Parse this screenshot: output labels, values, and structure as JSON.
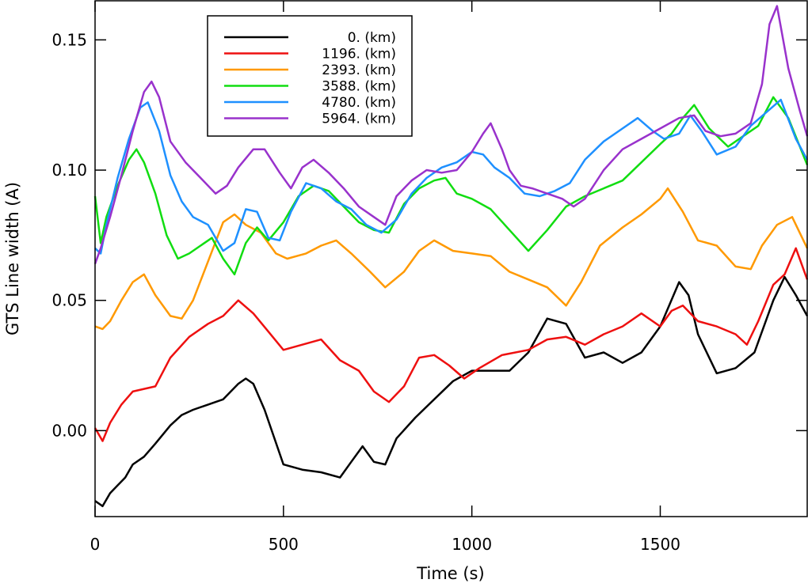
{
  "chart_data": {
    "type": "line",
    "xlabel": "Time (s)",
    "ylabel": "GTS Line width (A)",
    "xlim": [
      0,
      1890
    ],
    "ylim": [
      -0.033,
      0.165
    ],
    "xticks": [
      0,
      500,
      1000,
      1500
    ],
    "xtick_labels": [
      "0",
      "500",
      "1000",
      "1500"
    ],
    "yticks": [
      0.0,
      0.05,
      0.1,
      0.15
    ],
    "ytick_labels": [
      "0.00",
      "0.05",
      "0.10",
      "0.15"
    ],
    "legend_position": "top-left",
    "grid": false,
    "series": [
      {
        "name": "0. (km)",
        "color": "#000000",
        "x": [
          0,
          20,
          40,
          60,
          80,
          100,
          130,
          160,
          200,
          230,
          260,
          300,
          340,
          380,
          400,
          420,
          450,
          500,
          550,
          600,
          650,
          680,
          710,
          740,
          770,
          800,
          850,
          900,
          950,
          1000,
          1050,
          1100,
          1150,
          1200,
          1250,
          1300,
          1350,
          1400,
          1450,
          1500,
          1550,
          1575,
          1600,
          1650,
          1700,
          1750,
          1800,
          1830,
          1860,
          1890
        ],
        "y": [
          -0.027,
          -0.029,
          -0.024,
          -0.021,
          -0.018,
          -0.013,
          -0.01,
          -0.005,
          0.002,
          0.006,
          0.008,
          0.01,
          0.012,
          0.018,
          0.02,
          0.018,
          0.008,
          -0.013,
          -0.015,
          -0.016,
          -0.018,
          -0.012,
          -0.006,
          -0.012,
          -0.013,
          -0.003,
          0.005,
          0.012,
          0.019,
          0.023,
          0.023,
          0.023,
          0.03,
          0.043,
          0.041,
          0.028,
          0.03,
          0.026,
          0.03,
          0.04,
          0.057,
          0.052,
          0.037,
          0.022,
          0.024,
          0.03,
          0.05,
          0.059,
          0.052,
          0.044
        ]
      },
      {
        "name": "1196. (km)",
        "color": "#ee1010",
        "x": [
          0,
          20,
          40,
          70,
          100,
          130,
          160,
          200,
          250,
          300,
          340,
          380,
          420,
          460,
          500,
          550,
          600,
          650,
          700,
          740,
          780,
          820,
          860,
          900,
          940,
          980,
          1020,
          1080,
          1150,
          1200,
          1250,
          1300,
          1350,
          1400,
          1450,
          1500,
          1530,
          1560,
          1600,
          1650,
          1700,
          1730,
          1760,
          1800,
          1830,
          1860,
          1890
        ],
        "y": [
          0.001,
          -0.004,
          0.003,
          0.01,
          0.015,
          0.016,
          0.017,
          0.028,
          0.036,
          0.041,
          0.044,
          0.05,
          0.045,
          0.038,
          0.031,
          0.033,
          0.035,
          0.027,
          0.023,
          0.015,
          0.011,
          0.017,
          0.028,
          0.029,
          0.025,
          0.02,
          0.024,
          0.029,
          0.031,
          0.035,
          0.036,
          0.033,
          0.037,
          0.04,
          0.045,
          0.04,
          0.046,
          0.048,
          0.042,
          0.04,
          0.037,
          0.033,
          0.042,
          0.056,
          0.06,
          0.07,
          0.058
        ]
      },
      {
        "name": "2393. (km)",
        "color": "#ff9900",
        "x": [
          0,
          20,
          40,
          70,
          100,
          130,
          160,
          200,
          230,
          260,
          300,
          340,
          370,
          400,
          440,
          480,
          510,
          560,
          600,
          640,
          680,
          730,
          770,
          820,
          860,
          900,
          950,
          1000,
          1050,
          1100,
          1150,
          1200,
          1250,
          1290,
          1340,
          1400,
          1450,
          1500,
          1520,
          1560,
          1600,
          1650,
          1700,
          1740,
          1770,
          1810,
          1850,
          1890
        ],
        "y": [
          0.04,
          0.039,
          0.042,
          0.05,
          0.057,
          0.06,
          0.052,
          0.044,
          0.043,
          0.05,
          0.065,
          0.08,
          0.083,
          0.079,
          0.076,
          0.068,
          0.066,
          0.068,
          0.071,
          0.073,
          0.068,
          0.061,
          0.055,
          0.061,
          0.069,
          0.073,
          0.069,
          0.068,
          0.067,
          0.061,
          0.058,
          0.055,
          0.048,
          0.057,
          0.071,
          0.078,
          0.083,
          0.089,
          0.093,
          0.084,
          0.073,
          0.071,
          0.063,
          0.062,
          0.071,
          0.079,
          0.082,
          0.07
        ]
      },
      {
        "name": "3588. (km)",
        "color": "#11dd11",
        "x": [
          0,
          15,
          30,
          60,
          90,
          110,
          130,
          160,
          190,
          220,
          250,
          280,
          310,
          340,
          370,
          400,
          430,
          460,
          500,
          540,
          580,
          620,
          660,
          700,
          740,
          780,
          820,
          860,
          900,
          930,
          960,
          1000,
          1050,
          1100,
          1150,
          1200,
          1250,
          1300,
          1350,
          1400,
          1450,
          1500,
          1530,
          1560,
          1590,
          1630,
          1680,
          1720,
          1760,
          1800,
          1840,
          1890
        ],
        "y": [
          0.09,
          0.072,
          0.082,
          0.094,
          0.104,
          0.108,
          0.103,
          0.091,
          0.075,
          0.066,
          0.068,
          0.071,
          0.074,
          0.066,
          0.06,
          0.072,
          0.078,
          0.073,
          0.08,
          0.09,
          0.094,
          0.092,
          0.086,
          0.08,
          0.077,
          0.076,
          0.087,
          0.093,
          0.096,
          0.097,
          0.091,
          0.089,
          0.085,
          0.077,
          0.069,
          0.077,
          0.086,
          0.09,
          0.093,
          0.096,
          0.103,
          0.11,
          0.114,
          0.12,
          0.125,
          0.116,
          0.109,
          0.113,
          0.117,
          0.128,
          0.12,
          0.102
        ]
      },
      {
        "name": "4780. (km)",
        "color": "#1e90ff",
        "x": [
          0,
          15,
          30,
          60,
          90,
          120,
          140,
          170,
          200,
          230,
          260,
          300,
          340,
          370,
          400,
          430,
          460,
          490,
          520,
          560,
          600,
          640,
          680,
          720,
          760,
          800,
          840,
          880,
          920,
          960,
          1000,
          1030,
          1060,
          1100,
          1140,
          1180,
          1220,
          1260,
          1300,
          1350,
          1400,
          1440,
          1480,
          1510,
          1550,
          1580,
          1610,
          1650,
          1700,
          1740,
          1780,
          1820,
          1860,
          1890
        ],
        "y": [
          0.07,
          0.068,
          0.079,
          0.097,
          0.112,
          0.124,
          0.126,
          0.115,
          0.098,
          0.088,
          0.082,
          0.079,
          0.069,
          0.072,
          0.085,
          0.084,
          0.074,
          0.073,
          0.084,
          0.095,
          0.093,
          0.088,
          0.085,
          0.079,
          0.076,
          0.081,
          0.091,
          0.097,
          0.101,
          0.103,
          0.107,
          0.106,
          0.101,
          0.097,
          0.091,
          0.09,
          0.092,
          0.095,
          0.104,
          0.111,
          0.116,
          0.12,
          0.115,
          0.112,
          0.114,
          0.121,
          0.115,
          0.106,
          0.109,
          0.117,
          0.122,
          0.127,
          0.112,
          0.104
        ]
      },
      {
        "name": "5964. (km)",
        "color": "#9932cc",
        "x": [
          0,
          15,
          40,
          70,
          100,
          130,
          150,
          170,
          200,
          240,
          280,
          320,
          350,
          380,
          420,
          450,
          490,
          520,
          550,
          580,
          620,
          660,
          700,
          740,
          770,
          800,
          840,
          880,
          920,
          960,
          1000,
          1030,
          1050,
          1080,
          1100,
          1130,
          1160,
          1200,
          1240,
          1270,
          1300,
          1350,
          1400,
          1450,
          1500,
          1550,
          1590,
          1620,
          1660,
          1700,
          1740,
          1770,
          1790,
          1810,
          1840,
          1870,
          1890
        ],
        "y": [
          0.064,
          0.07,
          0.082,
          0.098,
          0.115,
          0.13,
          0.134,
          0.128,
          0.111,
          0.103,
          0.097,
          0.091,
          0.094,
          0.101,
          0.108,
          0.108,
          0.099,
          0.093,
          0.101,
          0.104,
          0.099,
          0.093,
          0.086,
          0.082,
          0.079,
          0.09,
          0.096,
          0.1,
          0.099,
          0.1,
          0.107,
          0.114,
          0.118,
          0.108,
          0.1,
          0.094,
          0.093,
          0.091,
          0.089,
          0.086,
          0.089,
          0.1,
          0.108,
          0.112,
          0.116,
          0.12,
          0.121,
          0.115,
          0.113,
          0.114,
          0.118,
          0.133,
          0.156,
          0.163,
          0.139,
          0.123,
          0.113
        ]
      }
    ]
  }
}
